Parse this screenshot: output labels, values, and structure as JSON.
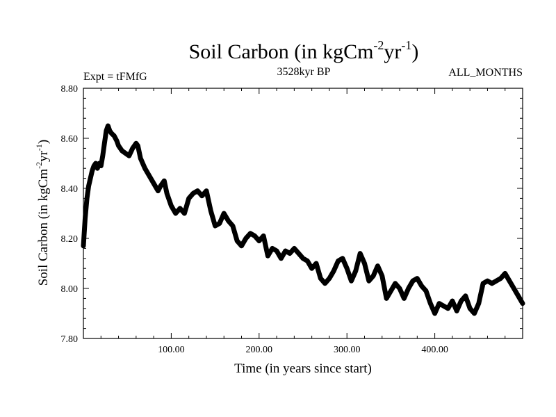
{
  "chart_data": {
    "type": "line",
    "title": {
      "text": "Soil Carbon (in kgCm",
      "sup1": "-2",
      "mid": "yr",
      "sup2": "-1",
      "end": ")"
    },
    "subtitle_left": "Expt = tFMfG",
    "subtitle_center": "3528kyr BP",
    "subtitle_right": "ALL_MONTHS",
    "xlabel": "Time (in years since start)",
    "ylabel": {
      "text": "Soil Carbon (in kgCm",
      "sup1": "-2",
      "mid": "yr",
      "sup2": "-1",
      "end": ")"
    },
    "xlim": [
      0,
      500
    ],
    "ylim": [
      7.8,
      8.8
    ],
    "x_ticks": [
      {
        "value": 100,
        "label": "100.00"
      },
      {
        "value": 200,
        "label": "200.00"
      },
      {
        "value": 300,
        "label": "300.00"
      },
      {
        "value": 400,
        "label": "400.00"
      }
    ],
    "y_ticks": [
      {
        "value": 7.8,
        "label": "7.80"
      },
      {
        "value": 8.0,
        "label": "8.00"
      },
      {
        "value": 8.2,
        "label": "8.20"
      },
      {
        "value": 8.4,
        "label": "8.40"
      },
      {
        "value": 8.6,
        "label": "8.60"
      },
      {
        "value": 8.8,
        "label": "8.80"
      }
    ],
    "series": [
      {
        "name": "Soil Carbon",
        "color": "#000000",
        "x": [
          0,
          2,
          4,
          6,
          8,
          10,
          12,
          14,
          16,
          18,
          20,
          22,
          24,
          26,
          28,
          30,
          32,
          35,
          38,
          40,
          44,
          48,
          52,
          56,
          60,
          62,
          65,
          70,
          75,
          80,
          85,
          88,
          92,
          95,
          100,
          105,
          110,
          115,
          120,
          125,
          130,
          135,
          140,
          145,
          150,
          155,
          160,
          165,
          170,
          175,
          180,
          185,
          190,
          195,
          200,
          205,
          210,
          215,
          220,
          225,
          230,
          235,
          240,
          245,
          250,
          255,
          260,
          265,
          270,
          275,
          280,
          285,
          290,
          295,
          300,
          305,
          310,
          315,
          320,
          325,
          330,
          335,
          340,
          345,
          350,
          355,
          360,
          365,
          370,
          375,
          380,
          385,
          390,
          395,
          400,
          405,
          410,
          415,
          420,
          425,
          430,
          435,
          440,
          445,
          450,
          455,
          460,
          465,
          470,
          475,
          480,
          485,
          490,
          495,
          500
        ],
        "values": [
          8.17,
          8.28,
          8.36,
          8.41,
          8.44,
          8.47,
          8.49,
          8.5,
          8.48,
          8.5,
          8.49,
          8.53,
          8.58,
          8.63,
          8.65,
          8.63,
          8.62,
          8.61,
          8.59,
          8.57,
          8.55,
          8.54,
          8.53,
          8.56,
          8.58,
          8.57,
          8.52,
          8.48,
          8.45,
          8.42,
          8.39,
          8.41,
          8.43,
          8.38,
          8.33,
          8.3,
          8.32,
          8.3,
          8.36,
          8.38,
          8.39,
          8.37,
          8.39,
          8.31,
          8.25,
          8.26,
          8.3,
          8.27,
          8.25,
          8.19,
          8.17,
          8.2,
          8.22,
          8.21,
          8.19,
          8.21,
          8.13,
          8.16,
          8.15,
          8.12,
          8.15,
          8.14,
          8.16,
          8.14,
          8.12,
          8.11,
          8.08,
          8.1,
          8.04,
          8.02,
          8.04,
          8.07,
          8.11,
          8.12,
          8.08,
          8.03,
          8.07,
          8.14,
          8.1,
          8.03,
          8.05,
          8.09,
          8.05,
          7.96,
          7.99,
          8.02,
          8.0,
          7.96,
          8.0,
          8.03,
          8.04,
          8.01,
          7.99,
          7.94,
          7.9,
          7.94,
          7.93,
          7.92,
          7.95,
          7.91,
          7.95,
          7.97,
          7.92,
          7.9,
          7.94,
          8.02,
          8.03,
          8.02,
          8.03,
          8.04,
          8.06,
          8.03,
          8.0,
          7.97,
          7.94
        ]
      }
    ]
  }
}
